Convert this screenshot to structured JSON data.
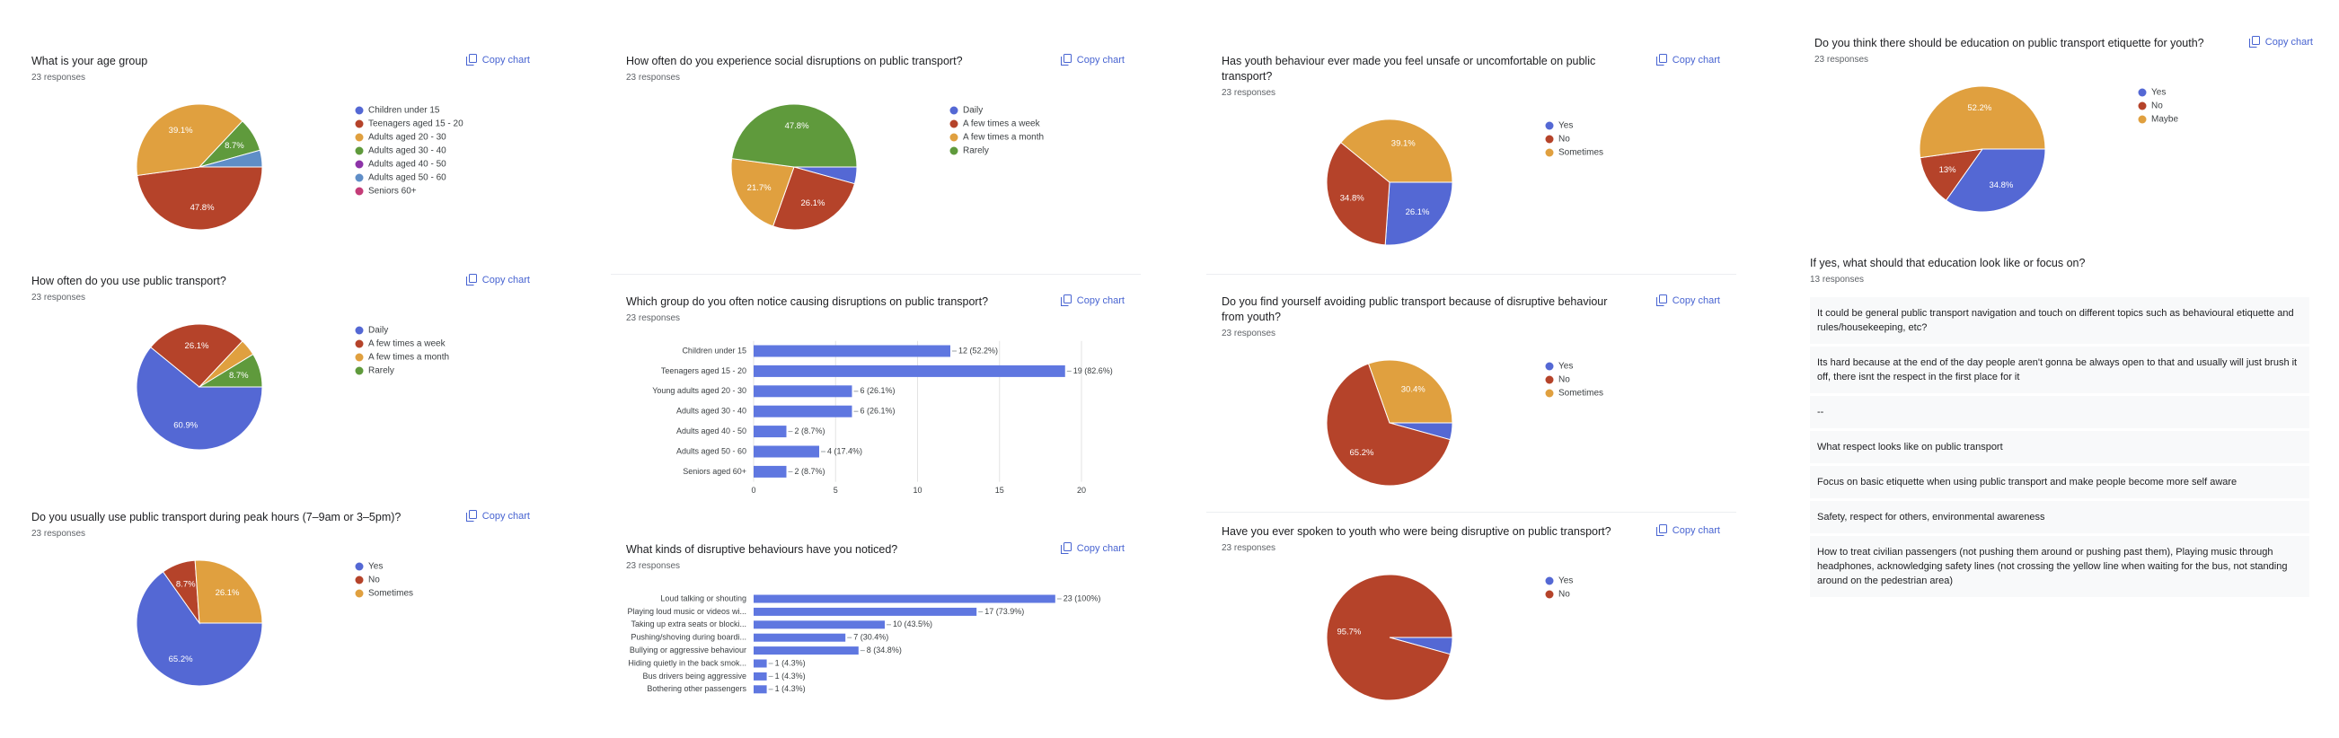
{
  "copy_chart": "Copy chart",
  "chart_data": [
    {
      "type": "pie",
      "title": "What is your age group",
      "subtitle": "23 responses",
      "categories": [
        "Children under 15",
        "Teenagers aged 15 - 20",
        "Adults aged 20 - 30",
        "Adults aged 30 - 40",
        "Adults aged 40 - 50",
        "Adults aged 50 - 60",
        "Seniors 60+"
      ],
      "values": [
        0,
        47.8,
        39.1,
        8.7,
        0,
        4.3,
        0
      ],
      "value_labels": [
        null,
        "47.8%",
        "39.1%",
        "8.7%",
        null,
        null,
        null
      ],
      "colors": [
        "#5468d4",
        "#b5432a",
        "#e0a03f",
        "#5f9a3c",
        "#8d33a8",
        "#5f8ec7",
        "#c43c78"
      ]
    },
    {
      "type": "pie",
      "title": "How often do you use public transport?",
      "subtitle": "23 responses",
      "categories": [
        "Daily",
        "A few times a week",
        "A few times a month",
        "Rarely"
      ],
      "values": [
        60.9,
        26.1,
        4.3,
        8.7
      ],
      "value_labels": [
        "60.9%",
        "26.1%",
        null,
        "8.7%"
      ],
      "colors": [
        "#5468d4",
        "#b5432a",
        "#e0a03f",
        "#5f9a3c"
      ]
    },
    {
      "type": "pie",
      "title": "Do you usually use public transport during peak hours (7–9am or 3–5pm)?",
      "subtitle": "23 responses",
      "categories": [
        "Yes",
        "No",
        "Sometimes"
      ],
      "values": [
        65.2,
        8.7,
        26.1
      ],
      "value_labels": [
        "65.2%",
        "8.7%",
        "26.1%"
      ],
      "colors": [
        "#5468d4",
        "#b5432a",
        "#e0a03f"
      ]
    },
    {
      "type": "pie",
      "title": "How often do you experience social disruptions on public transport?",
      "subtitle": "23 responses",
      "categories": [
        "Daily",
        "A few times a week",
        "A few times a month",
        "Rarely"
      ],
      "values": [
        4.3,
        26.1,
        21.7,
        47.8
      ],
      "value_labels": [
        null,
        "26.1%",
        "21.7%",
        "47.8%"
      ],
      "colors": [
        "#5468d4",
        "#b5432a",
        "#e0a03f",
        "#5f9a3c"
      ]
    },
    {
      "type": "bar",
      "orientation": "horizontal",
      "title": "Which group do you often notice causing disruptions on public transport?",
      "subtitle": "23 responses",
      "categories": [
        "Children under 15",
        "Teenagers aged 15 - 20",
        "Young adults aged 20 - 30",
        "Adults aged 30 - 40",
        "Adults aged 40 - 50",
        "Adults aged 50 - 60",
        "Seniors aged 60+"
      ],
      "values": [
        12,
        19,
        6,
        6,
        2,
        4,
        2
      ],
      "value_labels": [
        "12 (52.2%)",
        "19 (82.6%)",
        "6 (26.1%)",
        "6 (26.1%)",
        "2 (8.7%)",
        "4 (17.4%)",
        "2 (8.7%)"
      ],
      "color": "#5f77e0",
      "xlim": [
        0,
        20
      ],
      "xticks": [
        0,
        5,
        10,
        15,
        20
      ],
      "grid": true
    },
    {
      "type": "bar",
      "orientation": "horizontal",
      "title": "What kinds of disruptive behaviours have you noticed?",
      "subtitle": "23 responses",
      "categories": [
        "Loud talking or shouting",
        "Playing loud music or videos wi...",
        "Taking up extra seats or blocki...",
        "Pushing/shoving during boardi...",
        "Bullying or aggressive behaviour",
        "Hiding quietly in the back smok...",
        "Bus drivers being aggressive",
        "Bothering other passengers"
      ],
      "values": [
        23,
        17,
        10,
        7,
        8,
        1,
        1,
        1
      ],
      "value_labels": [
        "23 (100%)",
        "17 (73.9%)",
        "10 (43.5%)",
        "7 (30.4%)",
        "8 (34.8%)",
        "1 (4.3%)",
        "1 (4.3%)",
        "1 (4.3%)"
      ],
      "color": "#5f77e0",
      "xlim": [
        0,
        25
      ]
    },
    {
      "type": "pie",
      "title": "Has youth behaviour ever made you feel unsafe or uncomfortable on public transport?",
      "subtitle": "23 responses",
      "categories": [
        "Yes",
        "No",
        "Sometimes"
      ],
      "values": [
        26.1,
        34.8,
        39.1
      ],
      "value_labels": [
        "26.1%",
        "34.8%",
        "39.1%"
      ],
      "colors": [
        "#5468d4",
        "#b5432a",
        "#e0a03f"
      ]
    },
    {
      "type": "pie",
      "title": "Do you find yourself avoiding public transport because of disruptive behaviour from youth?",
      "subtitle": "23 responses",
      "categories": [
        "Yes",
        "No",
        "Sometimes"
      ],
      "values": [
        4.3,
        65.2,
        30.4
      ],
      "value_labels": [
        null,
        "65.2%",
        "30.4%"
      ],
      "colors": [
        "#5468d4",
        "#b5432a",
        "#e0a03f"
      ]
    },
    {
      "type": "pie",
      "title": "Have you ever spoken to youth who were being disruptive on public transport?",
      "subtitle": "23 responses",
      "categories": [
        "Yes",
        "No"
      ],
      "values": [
        4.3,
        95.7
      ],
      "value_labels": [
        null,
        "95.7%"
      ],
      "colors": [
        "#5468d4",
        "#b5432a"
      ]
    },
    {
      "type": "pie",
      "title": "Do you think there should be education on public transport etiquette for youth?",
      "subtitle": "23 responses",
      "categories": [
        "Yes",
        "No",
        "Maybe"
      ],
      "values": [
        34.8,
        13,
        52.2
      ],
      "value_labels": [
        "34.8%",
        "13%",
        "52.2%"
      ],
      "colors": [
        "#5468d4",
        "#b5432a",
        "#e0a03f"
      ]
    }
  ],
  "text_responses": {
    "title": "If yes, what should that education look like or focus on?",
    "subtitle": "13 responses",
    "responses": [
      "It could be general public transport navigation and touch on different topics such as behavioural etiquette and rules/housekeeping, etc?",
      "Its hard because at the end of the day people aren't gonna be always open to that and usually will just brush it off, there isnt the respect in the first place for it",
      "--",
      "What respect looks like on public transport",
      "Focus on basic etiquette when using public transport and make people become more self aware",
      "Safety, respect for others, environmental awareness",
      "How to treat civilian passengers (not pushing them around or pushing past them), Playing music through headphones, acknowledging safety lines (not crossing the yellow line when waiting for the bus, not standing around on the pedestrian area)"
    ]
  }
}
